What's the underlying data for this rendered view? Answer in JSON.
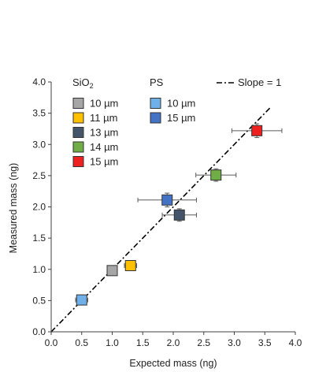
{
  "chart_data": {
    "type": "scatter",
    "xlabel": "Expected mass (ng)",
    "ylabel": "Measured mass (ng)",
    "xlim": [
      0,
      4
    ],
    "ylim": [
      0,
      4
    ],
    "x_ticks": [
      "0.0",
      "0.5",
      "1.0",
      "1.5",
      "2.0",
      "2.5",
      "3.0",
      "3.5",
      "4.0"
    ],
    "y_ticks": [
      "0.0",
      "0.5",
      "1.0",
      "1.5",
      "2.0",
      "2.5",
      "3.0",
      "3.5",
      "4.0"
    ],
    "grid": false,
    "legend": {
      "placement": "top-left",
      "groups": [
        {
          "title_main": "SiO",
          "title_sub": "2",
          "entries": [
            {
              "label": "10 µm",
              "series": 0
            },
            {
              "label": "11 µm",
              "series": 1
            },
            {
              "label": "13 µm",
              "series": 2
            },
            {
              "label": "14 µm",
              "series": 3
            },
            {
              "label": "15 µm",
              "series": 4
            }
          ]
        },
        {
          "title_main": "PS",
          "title_sub": "",
          "entries": [
            {
              "label": "10 µm",
              "series": 5
            },
            {
              "label": "15 µm",
              "series": 6
            }
          ]
        }
      ],
      "line_label": "Slope = 1"
    },
    "series": [
      {
        "name": "SiO2 10 µm",
        "color": "#a6a6a6",
        "x": 1.0,
        "y": 0.98,
        "x_err": 0.06,
        "y_err": 0.04
      },
      {
        "name": "SiO2 11 µm",
        "color": "#ffc000",
        "x": 1.3,
        "y": 1.06,
        "x_err": 0.1,
        "y_err": 0.05
      },
      {
        "name": "SiO2 13 µm",
        "color": "#44546a",
        "x": 2.1,
        "y": 1.87,
        "x_err": 0.28,
        "y_err": 0.1
      },
      {
        "name": "SiO2 14 µm",
        "color": "#70ad47",
        "x": 2.7,
        "y": 2.51,
        "x_err": 0.33,
        "y_err": 0.1
      },
      {
        "name": "SiO2 15 µm",
        "color": "#ee2020",
        "x": 3.37,
        "y": 3.22,
        "x_err": 0.41,
        "y_err": 0.11
      },
      {
        "name": "PS 10 µm",
        "color": "#6fb0e8",
        "x": 0.5,
        "y": 0.51,
        "x_err": 0.1,
        "y_err": 0.08
      },
      {
        "name": "PS 15 µm",
        "color": "#4472c4",
        "x": 1.9,
        "y": 2.11,
        "x_err": 0.48,
        "y_err": 0.11
      }
    ],
    "reference_line": {
      "label": "Slope = 1",
      "slope": 1,
      "intercept": 0,
      "x_range": [
        0,
        3.6
      ]
    }
  }
}
